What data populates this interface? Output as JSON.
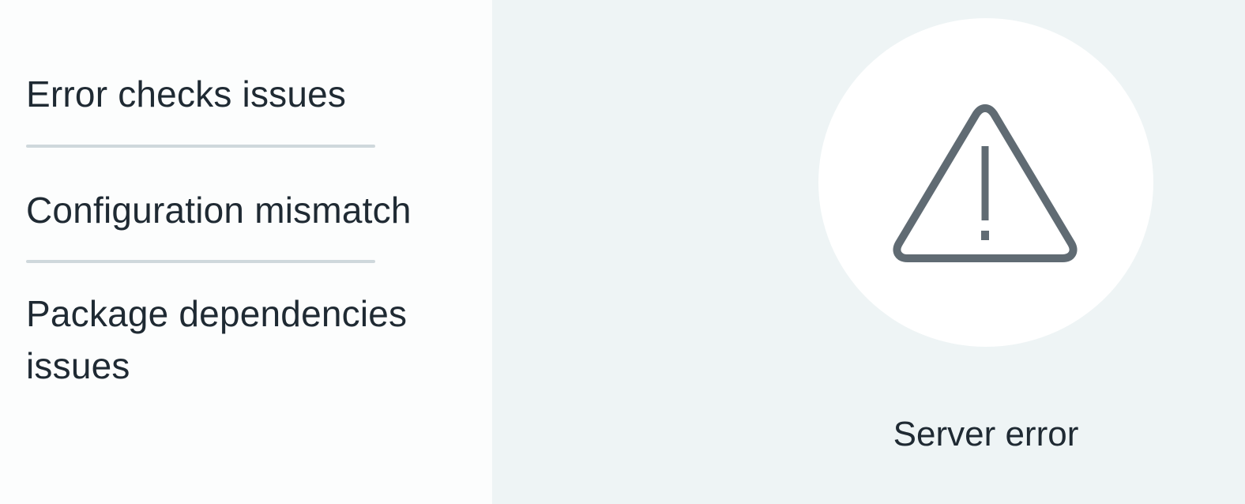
{
  "left_list": {
    "items": [
      {
        "label": "Error checks issues"
      },
      {
        "label": "Configuration mismatch"
      },
      {
        "label": "Package dependencies issues"
      }
    ]
  },
  "right_panel": {
    "icon": "warning-triangle-icon",
    "caption": "Server error"
  },
  "colors": {
    "left_background": "#fcfdfd",
    "right_background": "#eef4f5",
    "text": "#1f2a33",
    "divider": "#cfd8dc",
    "icon_stroke": "#606b73",
    "circle": "#ffffff"
  }
}
